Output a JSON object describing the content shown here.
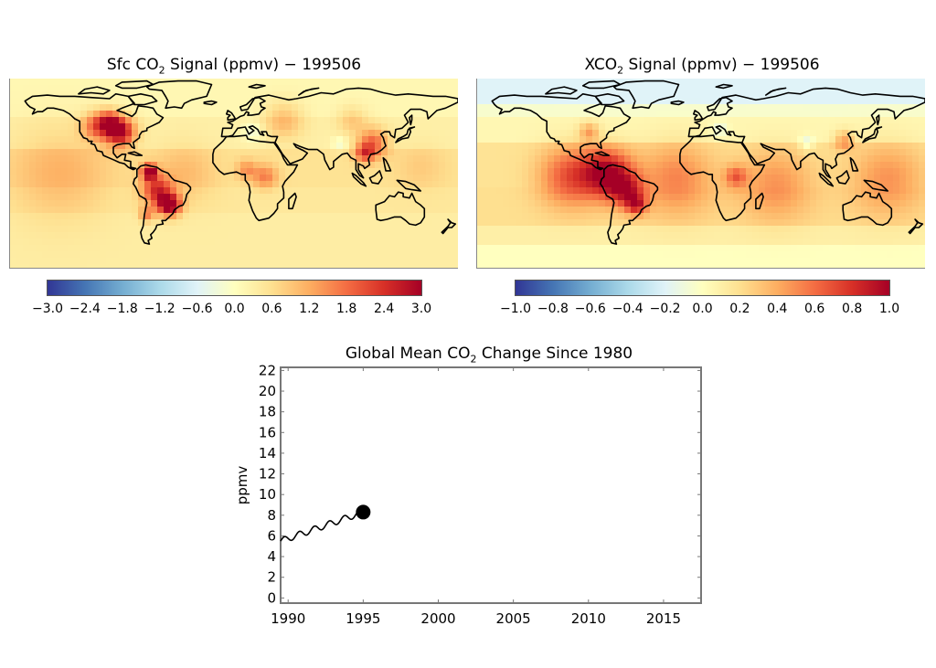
{
  "chart_data": [
    {
      "type": "heatmap",
      "id": "sfc_map",
      "title_pre": "Sfc CO",
      "title_sub": "2",
      "title_post": " Signal (ppmv) − 199506",
      "projection": "global lat-lon with coastlines",
      "colorbar": {
        "ticks": [
          "−3.0",
          "−2.4",
          "−1.8",
          "−1.2",
          "−0.6",
          "0.0",
          "0.6",
          "1.2",
          "1.8",
          "2.4",
          "3.0"
        ],
        "range": [
          -3.0,
          3.0
        ],
        "colors": [
          "#313695",
          "#4575b4",
          "#74add1",
          "#abd9e9",
          "#e0f3f8",
          "#ffffbf",
          "#fee090",
          "#fdae61",
          "#f46d43",
          "#d73027",
          "#a50026"
        ]
      },
      "background_color": "#f7f3c4",
      "hotspots": [
        {
          "region": "Eastern United States",
          "value": 2.8
        },
        {
          "region": "Western North America",
          "value": 1.6
        },
        {
          "region": "Northern South America",
          "value": 3.0
        },
        {
          "region": "Southern Brazil",
          "value": 2.9
        },
        {
          "region": "Amazon",
          "value": 1.8
        },
        {
          "region": "Eastern China",
          "value": 1.5
        },
        {
          "region": "Central Africa",
          "value": 1.0
        },
        {
          "region": "Europe / Russia",
          "value": 0.8
        },
        {
          "region": "Mediterranean",
          "value": -0.5
        },
        {
          "region": "Tibet / Himalaya",
          "value": -0.4
        }
      ]
    },
    {
      "type": "heatmap",
      "id": "xco2_map",
      "title_pre": "XCO",
      "title_sub": "2",
      "title_post": " Signal (ppmv) − 199506",
      "projection": "global lat-lon with coastlines",
      "colorbar": {
        "ticks": [
          "−1.0",
          "−0.8",
          "−0.6",
          "−0.4",
          "−0.2",
          "0.0",
          "0.2",
          "0.4",
          "0.6",
          "0.8",
          "1.0"
        ],
        "range": [
          -1.0,
          1.0
        ],
        "colors": [
          "#313695",
          "#4575b4",
          "#74add1",
          "#abd9e9",
          "#e0f3f8",
          "#ffffbf",
          "#fee090",
          "#fdae61",
          "#f46d43",
          "#d73027",
          "#a50026"
        ]
      },
      "hotspots": [
        {
          "region": "Tropical Atlantic / Northern South America",
          "value": 0.7
        },
        {
          "region": "Southern Brazil",
          "value": 0.55
        },
        {
          "region": "Eastern United States",
          "value": 0.35
        },
        {
          "region": "Central Africa",
          "value": 0.35
        },
        {
          "region": "Eastern China",
          "value": 0.3
        },
        {
          "region": "Arctic",
          "value": -0.25
        },
        {
          "region": "Tibet",
          "value": -0.2
        }
      ]
    },
    {
      "type": "line",
      "id": "global_mean",
      "title_pre": "Global Mean CO",
      "title_sub": "2",
      "title_post": " Change Since 1980",
      "xlabel": "",
      "ylabel": "ppmv",
      "xlim": [
        1989.5,
        2017.5
      ],
      "ylim": [
        -0.5,
        22.3
      ],
      "xticks": [
        1990,
        1995,
        2000,
        2005,
        2010,
        2015
      ],
      "yticks": [
        0,
        2,
        4,
        6,
        8,
        10,
        12,
        14,
        16,
        18,
        20,
        22
      ],
      "series": [
        {
          "name": "global mean CO2 change",
          "trend_start": [
            1989.5,
            5.5
          ],
          "trend_end": [
            1995.0,
            8.3
          ],
          "seasonal_amplitude": 0.3,
          "cycle_period_years": 1.0
        }
      ],
      "current_point": {
        "x": 1995.0,
        "y": 8.3
      }
    }
  ]
}
